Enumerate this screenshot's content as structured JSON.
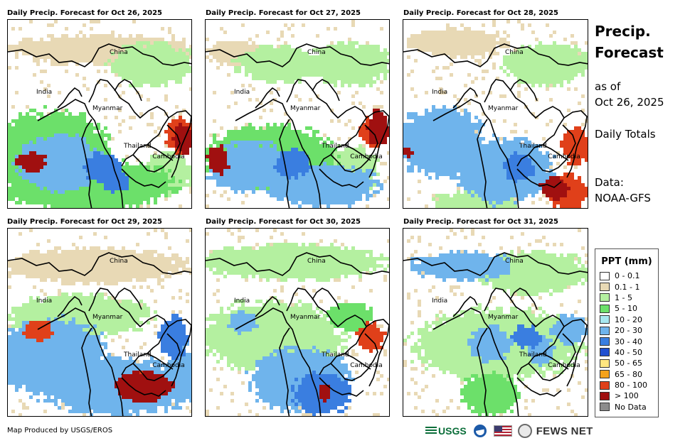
{
  "panels": [
    {
      "title": "Daily Precip. Forecast for Oct 26, 2025",
      "variant": 0
    },
    {
      "title": "Daily Precip. Forecast for Oct 27, 2025",
      "variant": 1
    },
    {
      "title": "Daily Precip. Forecast for Oct 28, 2025",
      "variant": 2
    },
    {
      "title": "Daily Precip. Forecast for Oct 29, 2025",
      "variant": 3
    },
    {
      "title": "Daily Precip. Forecast for Oct 30, 2025",
      "variant": 4
    },
    {
      "title": "Daily Precip. Forecast for Oct 31, 2025",
      "variant": 5
    }
  ],
  "map_labels": {
    "china": "China",
    "india": "India",
    "myanmar": "Myanmar",
    "thailand": "Thailand",
    "cambodia": "Cambodia"
  },
  "side": {
    "title_line1": "Precip.",
    "title_line2": "Forecast",
    "asof_line1": "as of",
    "asof_line2": "Oct 26, 2025",
    "daily_totals": "Daily Totals",
    "data_line1": "Data:",
    "data_line2": "NOAA-GFS"
  },
  "legend": {
    "title": "PPT (mm)",
    "items": [
      {
        "label": "0 - 0.1",
        "color": "#ffffff"
      },
      {
        "label": "0.1 - 1",
        "color": "#e8d9b5"
      },
      {
        "label": "1 - 5",
        "color": "#b4f0a0"
      },
      {
        "label": "5 - 10",
        "color": "#6ce06a"
      },
      {
        "label": "10 - 20",
        "color": "#a8e8f0"
      },
      {
        "label": "20 - 30",
        "color": "#6fb4ec"
      },
      {
        "label": "30 - 40",
        "color": "#3a7ee0"
      },
      {
        "label": "40 - 50",
        "color": "#1f4fd0"
      },
      {
        "label": "50 - 65",
        "color": "#ffe680"
      },
      {
        "label": "65 - 80",
        "color": "#f5a21b"
      },
      {
        "label": "80 - 100",
        "color": "#e0401a"
      },
      {
        "label": "> 100",
        "color": "#a01010"
      },
      {
        "label": "No Data",
        "color": "#8c8c8c"
      }
    ]
  },
  "footer": {
    "credit": "Map Produced by USGS/EROS"
  },
  "logos": {
    "usgs": "USGS",
    "fews": "FEWS NET"
  }
}
